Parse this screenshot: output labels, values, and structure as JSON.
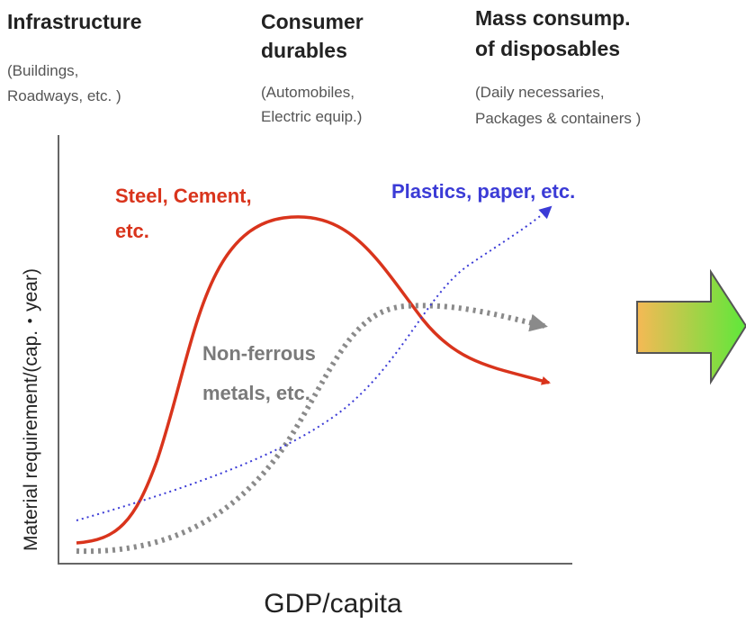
{
  "phases": [
    {
      "title": [
        "Infrastructure"
      ],
      "examples": [
        "(Buildings,",
        "Roadways, etc. )"
      ]
    },
    {
      "title": [
        "Consumer",
        "durables"
      ],
      "examples": [
        "(Automobiles,",
        "Electric equip.)"
      ]
    },
    {
      "title": [
        "Mass consump.",
        "of disposables"
      ],
      "examples": [
        "(Daily necessaries,",
        "Packages & containers )"
      ]
    }
  ],
  "curves": [
    {
      "label": [
        "Steel, Cement,",
        "etc."
      ]
    },
    {
      "label": [
        "Plastics, paper, etc."
      ]
    },
    {
      "label": [
        "Non-ferrous",
        "metals, etc."
      ]
    }
  ],
  "y_axis_label": "Material requirement/(cap.・year)",
  "x_axis_label": "GDP/capita"
}
